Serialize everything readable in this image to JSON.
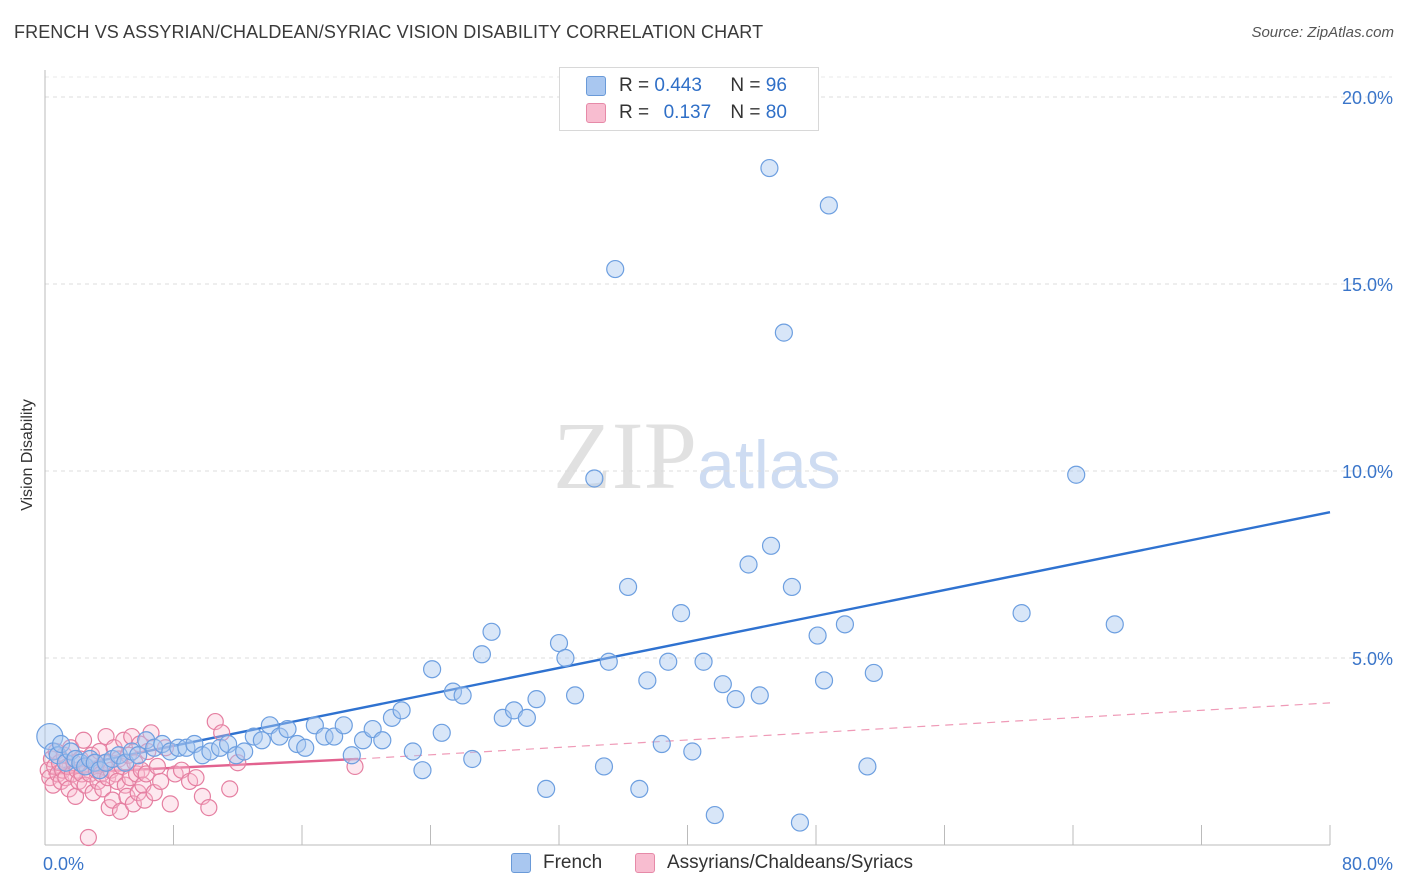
{
  "title": "FRENCH VS ASSYRIAN/CHALDEAN/SYRIAC VISION DISABILITY CORRELATION CHART",
  "source": "Source: ZipAtlas.com",
  "watermark": {
    "zip": "ZIP",
    "atlas": "atlas"
  },
  "legend": {
    "r_label": "R =",
    "n_label": "N =",
    "rows": [
      {
        "r": "0.443",
        "n": "96",
        "color": "#a9c7f0",
        "border": "#6a9ad8"
      },
      {
        "r": "0.137",
        "n": "80",
        "color": "#f8bdd0",
        "border": "#e68aa8"
      }
    ]
  },
  "bottom_legend": [
    "French",
    "Assyrians/Chaldeans/Syriacs"
  ],
  "chart_data": {
    "type": "scatter",
    "title": "FRENCH VS ASSYRIAN/CHALDEAN/SYRIAC VISION DISABILITY CORRELATION CHART",
    "xlabel": "",
    "ylabel": "Vision Disability",
    "xlim": [
      0,
      80
    ],
    "ylim": [
      0,
      20.5
    ],
    "x_tick_labels": [
      "0.0%",
      "80.0%"
    ],
    "y_ticks": [
      5,
      10,
      15,
      20
    ],
    "y_tick_labels": [
      "5.0%",
      "10.0%",
      "15.0%",
      "20.0%"
    ],
    "grid": "dashed horizontal",
    "legend_position": "top-center",
    "series": [
      {
        "name": "French",
        "color": "#6d9fe0",
        "fill": "#a9c7f0",
        "trend_line": {
          "x": [
            0.5,
            80
          ],
          "y": [
            2.0,
            8.9
          ]
        },
        "points": [
          [
            0.3,
            2.9
          ],
          [
            0.5,
            2.5
          ],
          [
            0.8,
            2.4
          ],
          [
            1.0,
            2.7
          ],
          [
            1.3,
            2.2
          ],
          [
            1.6,
            2.5
          ],
          [
            1.9,
            2.3
          ],
          [
            2.2,
            2.2
          ],
          [
            2.5,
            2.1
          ],
          [
            2.8,
            2.3
          ],
          [
            3.1,
            2.2
          ],
          [
            3.4,
            2.0
          ],
          [
            3.8,
            2.2
          ],
          [
            4.2,
            2.3
          ],
          [
            4.6,
            2.4
          ],
          [
            5.0,
            2.2
          ],
          [
            5.4,
            2.5
          ],
          [
            5.8,
            2.4
          ],
          [
            6.3,
            2.8
          ],
          [
            6.8,
            2.6
          ],
          [
            7.3,
            2.7
          ],
          [
            7.8,
            2.5
          ],
          [
            8.3,
            2.6
          ],
          [
            8.8,
            2.6
          ],
          [
            9.3,
            2.7
          ],
          [
            9.8,
            2.4
          ],
          [
            10.3,
            2.5
          ],
          [
            10.9,
            2.6
          ],
          [
            11.4,
            2.7
          ],
          [
            11.9,
            2.4
          ],
          [
            12.4,
            2.5
          ],
          [
            13.0,
            2.9
          ],
          [
            13.5,
            2.8
          ],
          [
            14.0,
            3.2
          ],
          [
            14.6,
            2.9
          ],
          [
            15.1,
            3.1
          ],
          [
            15.7,
            2.7
          ],
          [
            16.2,
            2.6
          ],
          [
            16.8,
            3.2
          ],
          [
            17.4,
            2.9
          ],
          [
            18.0,
            2.9
          ],
          [
            18.6,
            3.2
          ],
          [
            19.1,
            2.4
          ],
          [
            19.8,
            2.8
          ],
          [
            20.4,
            3.1
          ],
          [
            21.0,
            2.8
          ],
          [
            21.6,
            3.4
          ],
          [
            22.2,
            3.6
          ],
          [
            22.9,
            2.5
          ],
          [
            23.5,
            2.0
          ],
          [
            24.1,
            4.7
          ],
          [
            24.7,
            3.0
          ],
          [
            25.4,
            4.1
          ],
          [
            26.0,
            4.0
          ],
          [
            26.6,
            2.3
          ],
          [
            27.2,
            5.1
          ],
          [
            27.8,
            5.7
          ],
          [
            28.5,
            3.4
          ],
          [
            29.2,
            3.6
          ],
          [
            30.0,
            3.4
          ],
          [
            30.6,
            3.9
          ],
          [
            31.2,
            1.5
          ],
          [
            32.0,
            5.4
          ],
          [
            32.4,
            5.0
          ],
          [
            33.0,
            4.0
          ],
          [
            34.2,
            9.8
          ],
          [
            34.8,
            2.1
          ],
          [
            35.1,
            4.9
          ],
          [
            35.5,
            15.4
          ],
          [
            36.3,
            6.9
          ],
          [
            37.0,
            1.5
          ],
          [
            37.5,
            4.4
          ],
          [
            38.4,
            2.7
          ],
          [
            38.8,
            4.9
          ],
          [
            39.6,
            6.2
          ],
          [
            40.3,
            2.5
          ],
          [
            41.0,
            4.9
          ],
          [
            41.7,
            0.8
          ],
          [
            42.2,
            4.3
          ],
          [
            43.0,
            3.9
          ],
          [
            43.8,
            7.5
          ],
          [
            44.5,
            4.0
          ],
          [
            45.1,
            18.1
          ],
          [
            45.2,
            8.0
          ],
          [
            46.0,
            13.7
          ],
          [
            46.5,
            6.9
          ],
          [
            47.0,
            0.6
          ],
          [
            48.1,
            5.6
          ],
          [
            48.5,
            4.4
          ],
          [
            48.8,
            17.1
          ],
          [
            49.8,
            5.9
          ],
          [
            51.2,
            2.1
          ],
          [
            51.6,
            4.6
          ],
          [
            60.8,
            6.2
          ],
          [
            64.2,
            9.9
          ],
          [
            66.6,
            5.9
          ]
        ]
      },
      {
        "name": "Assyrians/Chaldeans/Syriacs",
        "color": "#e57fa1",
        "fill": "#f8bdd0",
        "trend_line": {
          "x": [
            0.2,
            19.5
          ],
          "y": [
            1.9,
            2.3
          ]
        },
        "trend_line_dashed": {
          "x": [
            19.5,
            80
          ],
          "y": [
            2.3,
            3.8
          ]
        },
        "points": [
          [
            0.2,
            2.0
          ],
          [
            0.3,
            1.8
          ],
          [
            0.4,
            2.3
          ],
          [
            0.5,
            1.6
          ],
          [
            0.6,
            2.1
          ],
          [
            0.7,
            2.5
          ],
          [
            0.8,
            1.9
          ],
          [
            0.9,
            2.2
          ],
          [
            1.0,
            1.7
          ],
          [
            1.1,
            2.0
          ],
          [
            1.2,
            2.4
          ],
          [
            1.3,
            1.8
          ],
          [
            1.4,
            2.1
          ],
          [
            1.5,
            1.5
          ],
          [
            1.6,
            2.6
          ],
          [
            1.7,
            1.9
          ],
          [
            1.8,
            2.2
          ],
          [
            1.9,
            1.3
          ],
          [
            2.0,
            2.0
          ],
          [
            2.1,
            1.7
          ],
          [
            2.2,
            2.3
          ],
          [
            2.3,
            1.9
          ],
          [
            2.4,
            2.8
          ],
          [
            2.5,
            1.6
          ],
          [
            2.6,
            2.1
          ],
          [
            2.7,
            0.2
          ],
          [
            2.8,
            1.9
          ],
          [
            2.9,
            2.4
          ],
          [
            3.0,
            1.4
          ],
          [
            3.1,
            2.2
          ],
          [
            3.2,
            2.0
          ],
          [
            3.3,
            1.7
          ],
          [
            3.4,
            2.5
          ],
          [
            3.5,
            1.9
          ],
          [
            3.6,
            1.5
          ],
          [
            3.7,
            2.2
          ],
          [
            3.8,
            2.9
          ],
          [
            3.9,
            1.8
          ],
          [
            4.0,
            1.0
          ],
          [
            4.1,
            2.0
          ],
          [
            4.2,
            1.2
          ],
          [
            4.3,
            2.6
          ],
          [
            4.4,
            1.9
          ],
          [
            4.5,
            1.7
          ],
          [
            4.6,
            2.3
          ],
          [
            4.7,
            0.9
          ],
          [
            4.8,
            2.1
          ],
          [
            4.9,
            2.8
          ],
          [
            5.0,
            1.6
          ],
          [
            5.1,
            1.3
          ],
          [
            5.2,
            2.4
          ],
          [
            5.3,
            1.8
          ],
          [
            5.4,
            2.9
          ],
          [
            5.5,
            1.1
          ],
          [
            5.6,
            2.2
          ],
          [
            5.7,
            1.9
          ],
          [
            5.8,
            1.4
          ],
          [
            5.9,
            2.7
          ],
          [
            6.0,
            2.0
          ],
          [
            6.1,
            1.6
          ],
          [
            6.2,
            1.2
          ],
          [
            6.3,
            1.9
          ],
          [
            6.4,
            2.5
          ],
          [
            6.6,
            3.0
          ],
          [
            6.8,
            1.4
          ],
          [
            7.0,
            2.1
          ],
          [
            7.2,
            1.7
          ],
          [
            7.5,
            2.6
          ],
          [
            7.8,
            1.1
          ],
          [
            8.1,
            1.9
          ],
          [
            8.5,
            2.0
          ],
          [
            9.0,
            1.7
          ],
          [
            9.4,
            1.8
          ],
          [
            9.8,
            1.3
          ],
          [
            10.2,
            1.0
          ],
          [
            10.6,
            3.3
          ],
          [
            11.0,
            3.0
          ],
          [
            11.5,
            1.5
          ],
          [
            12.0,
            2.2
          ],
          [
            19.3,
            2.1
          ]
        ]
      }
    ]
  }
}
